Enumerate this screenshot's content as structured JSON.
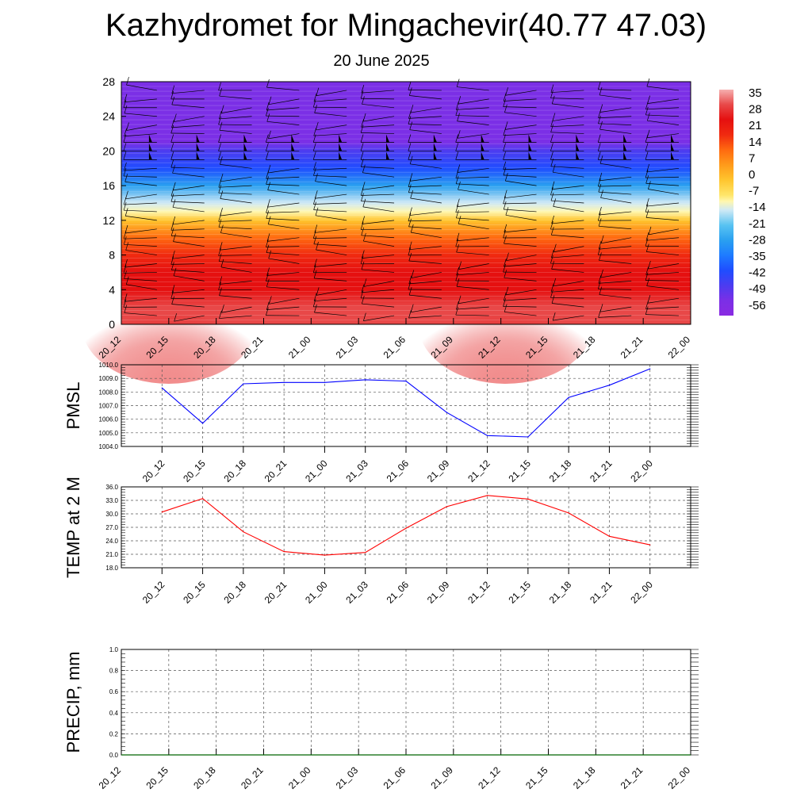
{
  "title": "Kazhydromet for Mingachevir(40.77 47.03)",
  "subtitle": "20 June 2025",
  "time_labels": [
    "20_12",
    "20_15",
    "20_18",
    "20_21",
    "21_00",
    "21_03",
    "21_06",
    "21_09",
    "21_12",
    "21_15",
    "21_18",
    "21_21",
    "22_00"
  ],
  "colors": {
    "pmsl_line": "#0000ff",
    "temp_line": "#ff0000",
    "precip_line": "#006400",
    "grid": "#555555"
  },
  "chart_data": [
    {
      "type": "heatmap",
      "description_kind": "cross-section",
      "ylim": [
        0,
        28
      ],
      "y_ticks": [
        "0",
        "4",
        "8",
        "12",
        "16",
        "20",
        "24",
        "28"
      ],
      "x_ticks": [
        "20_12",
        "20_15",
        "20_18",
        "20_21",
        "21_00",
        "21_03",
        "21_06",
        "21_09",
        "21_12",
        "21_15",
        "21_18",
        "21_21",
        "22_00"
      ],
      "colorbar_labels": [
        "35",
        "28",
        "21",
        "14",
        "7",
        "0",
        "-7",
        "-14",
        "-21",
        "-28",
        "-35",
        "-42",
        "-49",
        "-56"
      ],
      "colorbar_range": [
        -63,
        42
      ],
      "level_temperatures": [
        [
          0,
          32
        ],
        [
          2,
          29
        ],
        [
          4,
          26
        ],
        [
          6,
          22
        ],
        [
          8,
          18
        ],
        [
          10,
          10
        ],
        [
          12,
          0
        ],
        [
          13,
          -10
        ],
        [
          14,
          -20
        ],
        [
          16,
          -32
        ],
        [
          18,
          -44
        ],
        [
          20,
          -54
        ],
        [
          21,
          -58
        ],
        [
          22,
          -60
        ],
        [
          24,
          -61
        ],
        [
          28,
          -62
        ]
      ]
    },
    {
      "type": "line",
      "ylabel": "PMSL",
      "ylim": [
        1004.0,
        1010.0
      ],
      "y_ticks": [
        "1004.0",
        "1005.0",
        "1006.0",
        "1007.0",
        "1008.0",
        "1009.0",
        "1010.0"
      ],
      "x": [
        "20_12",
        "20_15",
        "20_18",
        "20_21",
        "21_00",
        "21_03",
        "21_06",
        "21_09",
        "21_12",
        "21_15",
        "21_18",
        "21_21",
        "22_00"
      ],
      "values": [
        1008.3,
        1005.7,
        1008.6,
        1008.7,
        1008.7,
        1008.9,
        1008.8,
        1006.5,
        1004.8,
        1004.7,
        1007.6,
        1008.5,
        1009.7
      ]
    },
    {
      "type": "line",
      "ylabel": "TEMP at 2 M",
      "ylim": [
        18.0,
        36.0
      ],
      "y_ticks": [
        "18.0",
        "21.0",
        "24.0",
        "27.0",
        "30.0",
        "33.0",
        "36.0"
      ],
      "x": [
        "20_12",
        "20_15",
        "20_18",
        "20_21",
        "21_00",
        "21_03",
        "21_06",
        "21_09",
        "21_12",
        "21_15",
        "21_18",
        "21_21",
        "22_00"
      ],
      "values": [
        30.4,
        33.4,
        26.0,
        21.6,
        20.8,
        21.4,
        26.8,
        31.6,
        34.1,
        33.3,
        30.2,
        25.0,
        23.1
      ]
    },
    {
      "type": "line",
      "ylabel": "PRECIP, mm",
      "ylim": [
        0.0,
        1.0
      ],
      "y_ticks": [
        "0.0",
        "0.2",
        "0.4",
        "0.6",
        "0.8",
        "1.0"
      ],
      "x_ticks": [
        "20_12",
        "20_15",
        "20_18",
        "20_21",
        "21_00",
        "21_03",
        "21_06",
        "21_09",
        "21_12",
        "21_15",
        "21_18",
        "21_21",
        "22_00"
      ],
      "values": [
        0,
        0,
        0,
        0,
        0,
        0,
        0,
        0,
        0,
        0,
        0,
        0,
        0
      ]
    }
  ]
}
